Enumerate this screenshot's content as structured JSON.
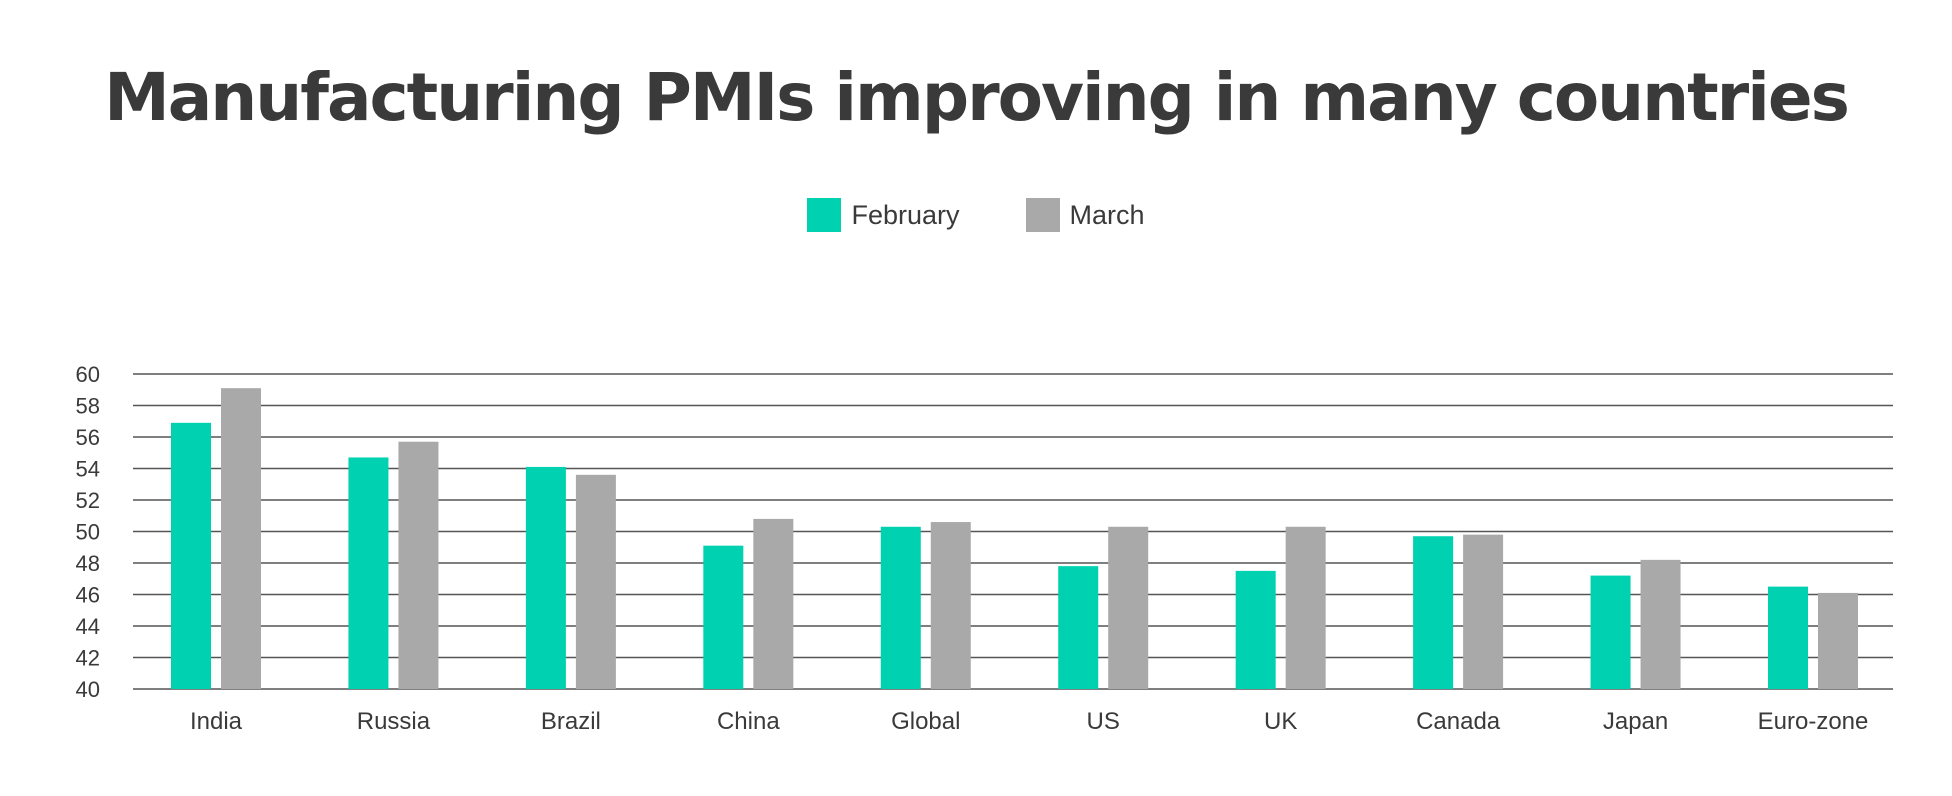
{
  "chart_data": {
    "type": "bar",
    "title": "Manufacturing PMIs improving in many countries",
    "categories": [
      "India",
      "Russia",
      "Brazil",
      "China",
      "Global",
      "US",
      "UK",
      "Canada",
      "Japan",
      "Euro-zone"
    ],
    "series": [
      {
        "name": "February",
        "color": "#00d1b0",
        "values": [
          56.9,
          54.7,
          54.1,
          49.1,
          50.3,
          47.8,
          47.5,
          49.7,
          47.2,
          46.5
        ]
      },
      {
        "name": "March",
        "color": "#a9a9a9",
        "values": [
          59.1,
          55.7,
          53.6,
          50.8,
          50.6,
          50.3,
          50.3,
          49.8,
          48.2,
          46.1
        ]
      }
    ],
    "ylim": [
      40,
      60
    ],
    "yticks": [
      40,
      42,
      44,
      46,
      48,
      50,
      52,
      54,
      56,
      58,
      60
    ],
    "xlabel": "",
    "ylabel": "",
    "grid": true,
    "legend_position": "top-center"
  }
}
